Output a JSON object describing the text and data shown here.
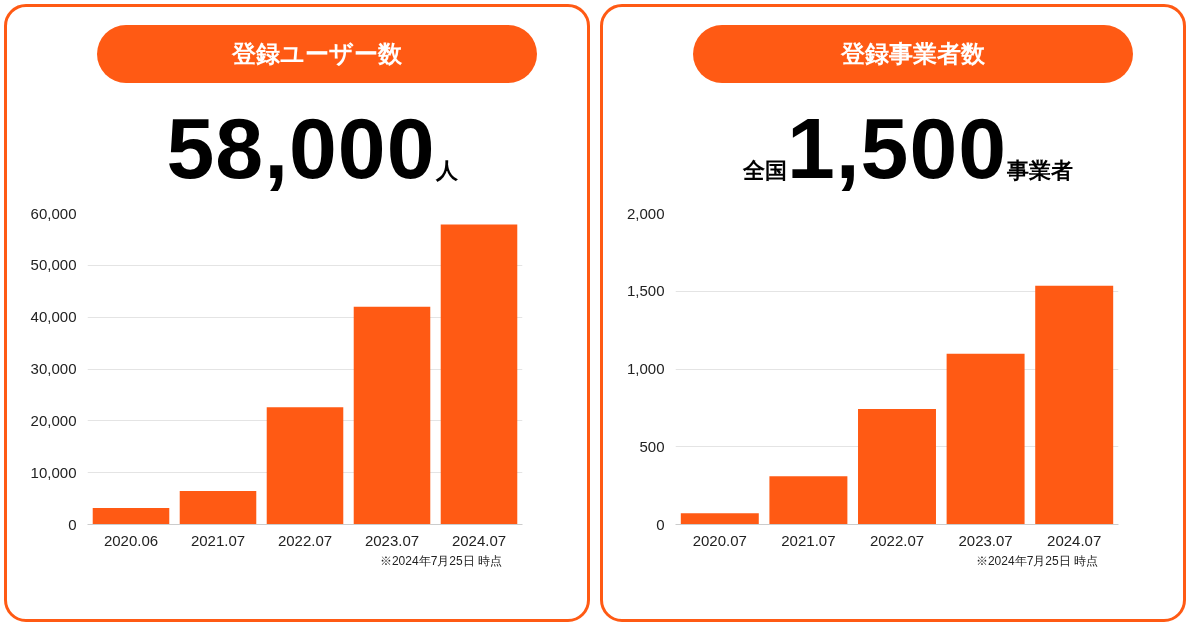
{
  "chart_data": [
    {
      "type": "bar",
      "title": "登録ユーザー数",
      "annotations": [
        "58,000人",
        "※2024年7月25日 時点"
      ],
      "categories": [
        "2020.06",
        "2021.07",
        "2022.07",
        "2023.07",
        "2024.07"
      ],
      "values": [
        3200,
        6450,
        22600,
        42000,
        57900
      ],
      "color": "#ff5a14",
      "ylim": [
        0,
        60000
      ],
      "yticks": [
        0,
        {
          "value": 10000,
          "label": "10,000"
        },
        {
          "value": 20000,
          "label": "20,000"
        },
        {
          "value": 30000,
          "label": "30,000"
        },
        {
          "value": 40000,
          "label": "40,000"
        },
        {
          "value": 50000,
          "label": "50,000"
        },
        {
          "value": 60000,
          "label": "60,000"
        }
      ],
      "grid": "y"
    },
    {
      "type": "bar",
      "title": "登録事業者数",
      "annotations": [
        "全国1,500事業者",
        "※2024年7月25日 時点"
      ],
      "categories": [
        "2020.07",
        "2021.07",
        "2022.07",
        "2023.07",
        "2024.07"
      ],
      "values": [
        73,
        310,
        743,
        1098,
        1536
      ],
      "color": "#ff5a14",
      "ylim": [
        0,
        2000
      ],
      "yticks": [
        0,
        500,
        {
          "value": 1000,
          "label": "1,000"
        },
        {
          "value": 1500,
          "label": "1,500"
        },
        {
          "value": 2000,
          "label": "2,000"
        }
      ],
      "grid": "y"
    }
  ]
}
